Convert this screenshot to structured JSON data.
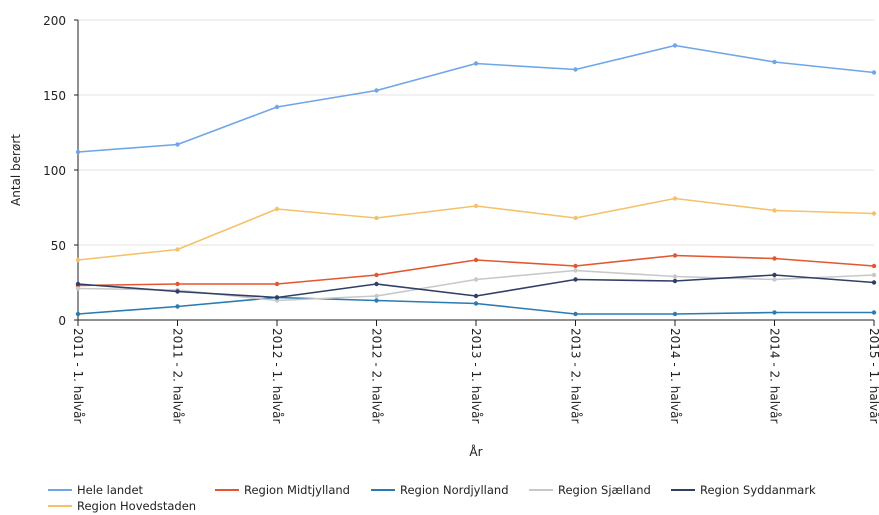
{
  "chart_data": {
    "type": "line",
    "title": "",
    "xlabel": "År",
    "ylabel": "Antal berørt",
    "ylim": [
      0,
      200
    ],
    "yticks": [
      "0",
      "50",
      "100",
      "150",
      "200"
    ],
    "grid": "horizontal",
    "legend_position": "bottom",
    "categories": [
      "2011 - 1. halvår",
      "2011 - 2. halvår",
      "2012 - 1. halvår",
      "2012 - 2. halvår",
      "2013 - 1. halvår",
      "2013 - 2. halvår",
      "2014 - 1. halvår",
      "2014 - 2. halvår",
      "2015 - 1. halvår"
    ],
    "series": [
      {
        "name": "Hele landet",
        "color": "#6ea6e8",
        "values": [
          112,
          117,
          142,
          153,
          171,
          167,
          183,
          172,
          165
        ]
      },
      {
        "name": "Region Hovedstaden",
        "color": "#f5c26b",
        "values": [
          40,
          47,
          74,
          68,
          76,
          68,
          81,
          73,
          71
        ]
      },
      {
        "name": "Region Midtjylland",
        "color": "#e2572f",
        "values": [
          23,
          24,
          24,
          30,
          40,
          36,
          43,
          41,
          36
        ]
      },
      {
        "name": "Region Nordjylland",
        "color": "#2a7bb0",
        "values": [
          4,
          9,
          15,
          13,
          11,
          4,
          4,
          5,
          5
        ]
      },
      {
        "name": "Region Sjælland",
        "color": "#c8c8c8",
        "values": [
          21,
          20,
          13,
          16,
          27,
          33,
          29,
          27,
          30
        ]
      },
      {
        "name": "Region Syddanmark",
        "color": "#2f3f66",
        "values": [
          24,
          19,
          15,
          24,
          16,
          27,
          26,
          30,
          25
        ]
      }
    ]
  }
}
